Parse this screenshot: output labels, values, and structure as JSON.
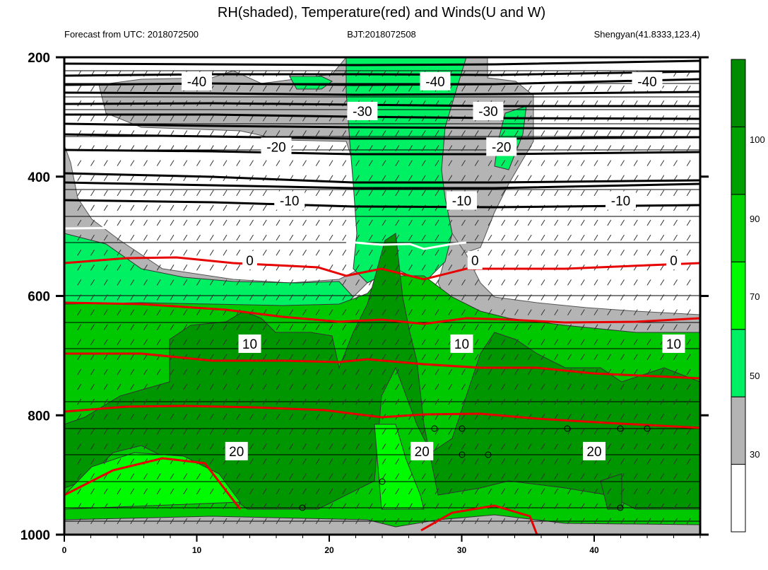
{
  "chart_data": {
    "type": "contour",
    "title": "RH(shaded), Temperature(red) and Winds(U and W)",
    "subtitle_left": "Forecast from UTC: 2018072500",
    "subtitle_center": "BJT:2018072508",
    "subtitle_right": "Shengyan(41.8333,123.4)",
    "x_ticks": [
      "0",
      "10",
      "20",
      "30",
      "40"
    ],
    "x_range": [
      0,
      48
    ],
    "y_ticks": [
      "200",
      "400",
      "600",
      "800",
      "1000"
    ],
    "y_range": [
      200,
      1000
    ],
    "colorbar": {
      "ticks": [
        "30",
        "50",
        "70",
        "90",
        "100"
      ],
      "colors": [
        "#ffffff",
        "#b4b4b4",
        "#00f064",
        "#00fa00",
        "#00d200",
        "#00a000",
        "#008c00"
      ]
    },
    "temperature_contours": [
      {
        "level": "-40",
        "label_x": [
          10,
          28,
          44
        ],
        "p": 240
      },
      {
        "level": "-30",
        "label_x": [
          22.5,
          32
        ],
        "p": 290
      },
      {
        "level": "-20",
        "label_x": [
          16,
          33
        ],
        "p": 350
      },
      {
        "level": "-10",
        "label_x": [
          17,
          30,
          42
        ],
        "p": 440
      },
      {
        "level": "0",
        "label_x": [
          14,
          31,
          46
        ],
        "p": 540
      },
      {
        "level": "10",
        "label_x": [
          14,
          30,
          46
        ],
        "p": 680
      },
      {
        "level": "20",
        "label_x": [
          13,
          27,
          40
        ],
        "p": 860
      }
    ]
  }
}
